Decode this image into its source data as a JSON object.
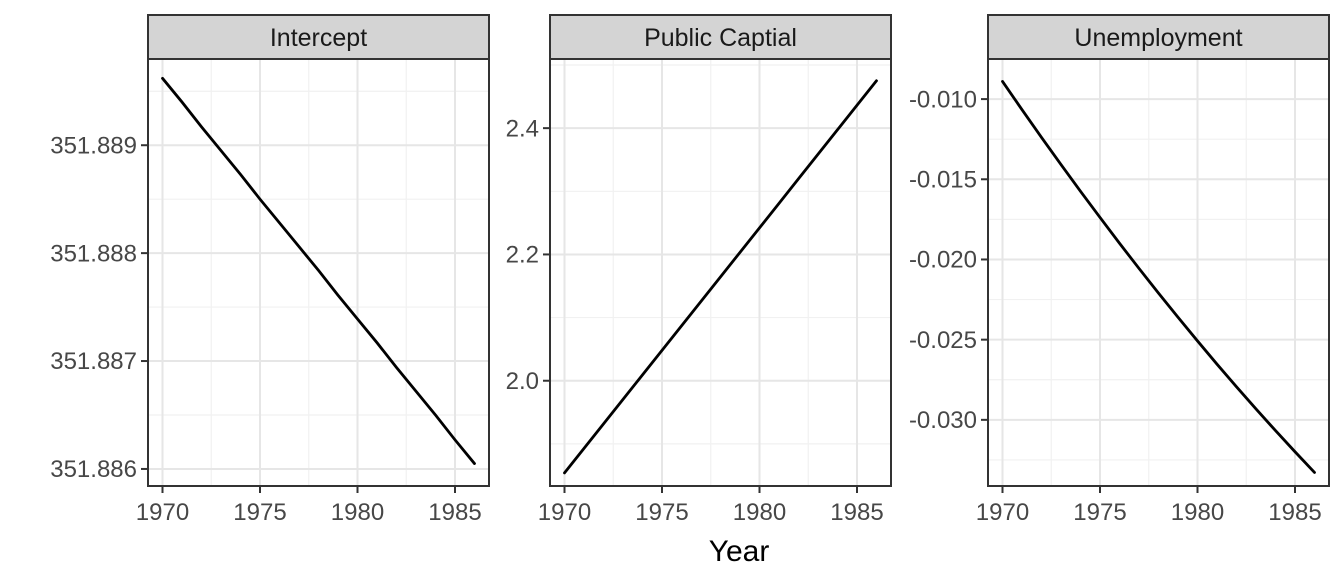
{
  "chart_data": {
    "type": "line",
    "title": "",
    "xlabel": "Year",
    "ylabel": "",
    "legend": "none",
    "grid": "major+minor",
    "x": [
      1970,
      1971,
      1972,
      1973,
      1974,
      1975,
      1976,
      1977,
      1978,
      1979,
      1980,
      1981,
      1982,
      1983,
      1984,
      1985,
      1986
    ],
    "xlim": [
      1969.256,
      1986.744
    ],
    "x_ticks": {
      "values": [
        1970,
        1975,
        1980,
        1985
      ],
      "labels": [
        "1970",
        "1975",
        "1980",
        "1985"
      ]
    },
    "x_minor": [
      1972.5,
      1977.5,
      1982.5
    ],
    "facets": [
      {
        "label": "Intercept",
        "ylim": [
          351.885842,
          351.889799
        ],
        "y_ticks": {
          "values": [
            351.886,
            351.887,
            351.888,
            351.889
          ],
          "labels": [
            "351.886",
            "351.887",
            "351.888",
            "351.889"
          ]
        },
        "y_minor": [
          351.8865,
          351.8875,
          351.8885,
          351.8895
        ],
        "values": [
          351.88962,
          351.8894,
          351.88917,
          351.88895,
          351.88873,
          351.8885,
          351.88828,
          351.88806,
          351.88784,
          351.88761,
          351.88739,
          351.88717,
          351.88694,
          351.88672,
          351.8865,
          351.88627,
          351.88605
        ]
      },
      {
        "label": "Public Captial",
        "ylim": [
          1.8333,
          2.5095
        ],
        "y_ticks": {
          "values": [
            2.0,
            2.2,
            2.4
          ],
          "labels": [
            "2.0",
            "2.2",
            "2.4"
          ]
        },
        "y_minor": [
          1.9,
          2.1,
          2.3,
          2.5
        ],
        "values": [
          1.854,
          1.8928,
          1.9316,
          1.9704,
          2.0093,
          2.0481,
          2.0869,
          2.1257,
          2.1645,
          2.2033,
          2.2421,
          2.2809,
          2.3198,
          2.3586,
          2.3974,
          2.4362,
          2.475
        ]
      },
      {
        "label": "Unemployment",
        "ylim": [
          -0.034125,
          -0.0075
        ],
        "y_ticks": {
          "values": [
            -0.03,
            -0.025,
            -0.02,
            -0.015,
            -0.01
          ],
          "labels": [
            "-0.030",
            "-0.025",
            "-0.020",
            "-0.015",
            "-0.010"
          ]
        },
        "y_minor": [
          -0.0125,
          -0.0175,
          -0.0225,
          -0.0275,
          -0.0325
        ],
        "values": [
          -0.0089,
          -0.01066,
          -0.01239,
          -0.01408,
          -0.01575,
          -0.01738,
          -0.01899,
          -0.02056,
          -0.0221,
          -0.0236,
          -0.02508,
          -0.02653,
          -0.02794,
          -0.02932,
          -0.03067,
          -0.03199,
          -0.03328
        ]
      }
    ]
  },
  "colors": {
    "background": "#ffffff",
    "panel_background": "#ffffff",
    "strip_fill": "#d4d4d4",
    "strip_border": "#333333",
    "strip_text": "#1a1a1a",
    "panel_border": "#333333",
    "grid_major": "#e6e6e6",
    "grid_minor": "#f1f1f1",
    "tick_mark": "#333333",
    "axis_text": "#474747",
    "line": "#000000"
  }
}
